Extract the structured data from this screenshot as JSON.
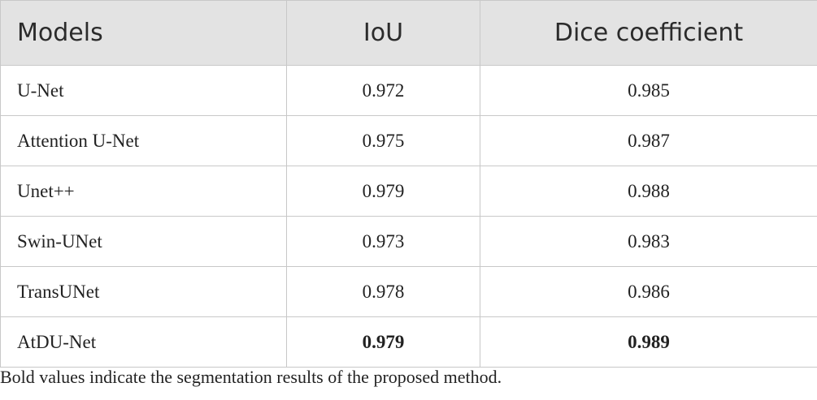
{
  "table": {
    "header": [
      "Models",
      "IoU",
      "Dice coefficient"
    ],
    "rows": [
      [
        "U-Net",
        "0.972",
        "0.985"
      ],
      [
        "Attention U-Net",
        "0.975",
        "0.987"
      ],
      [
        "Unet++",
        "0.979",
        "0.988"
      ],
      [
        "Swin-UNet",
        "0.973",
        "0.983"
      ],
      [
        "TransUNet",
        "0.978",
        "0.986"
      ],
      [
        "AtDU-Net",
        "0.979",
        "0.989"
      ]
    ]
  },
  "footnote": "Bold values indicate the segmentation results of the proposed method."
}
